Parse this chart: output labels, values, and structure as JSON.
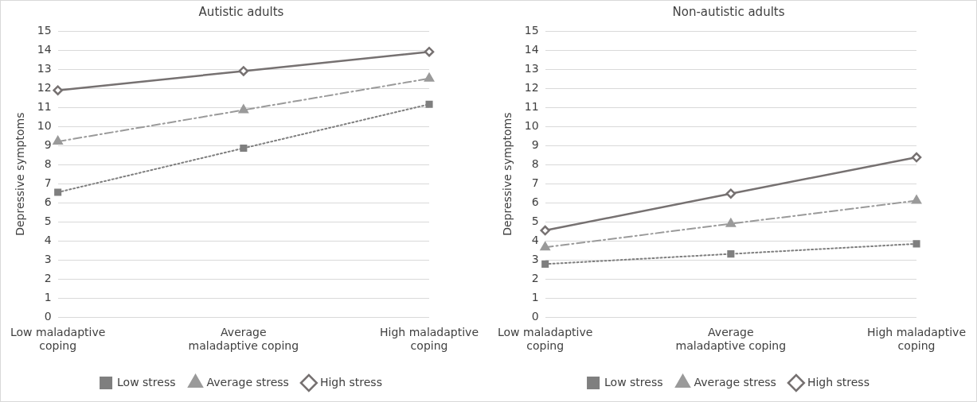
{
  "chart_data": [
    {
      "type": "line",
      "title": "Autistic adults",
      "ylabel": "Depressive symptoms",
      "categories": [
        "Low maladaptive coping",
        "Average maladaptive coping",
        "High maladaptive coping"
      ],
      "series": [
        {
          "name": "Low stress",
          "color": "#7f7f7f",
          "values": [
            6.55,
            8.86,
            11.16
          ],
          "marker": "square",
          "line_style": "dotted"
        },
        {
          "name": "Average stress",
          "color": "#9a9a9a",
          "values": [
            9.21,
            10.86,
            12.51
          ],
          "marker": "triangle",
          "line_style": "dashed"
        },
        {
          "name": "High stress",
          "color": "#767171",
          "values": [
            11.89,
            12.9,
            13.91
          ],
          "marker": "diamond",
          "line_style": "solid"
        }
      ],
      "ylim": [
        0,
        15
      ],
      "yticks": [
        0,
        1,
        2,
        3,
        4,
        5,
        6,
        7,
        8,
        9,
        10,
        11,
        12,
        13,
        14,
        15
      ],
      "grid": "y",
      "legend": "bottom"
    },
    {
      "type": "line",
      "title": "Non-autistic adults",
      "ylabel": "Depressive symptoms",
      "categories": [
        "Low maladaptive coping",
        "Average maladaptive coping",
        "High maladaptive coping"
      ],
      "series": [
        {
          "name": "Low stress",
          "color": "#7f7f7f",
          "values": [
            2.79,
            3.32,
            3.85
          ],
          "marker": "square",
          "line_style": "dotted"
        },
        {
          "name": "Average stress",
          "color": "#9a9a9a",
          "values": [
            3.67,
            4.9,
            6.11
          ],
          "marker": "triangle",
          "line_style": "dashed"
        },
        {
          "name": "High stress",
          "color": "#767171",
          "values": [
            4.55,
            6.48,
            8.38
          ],
          "marker": "diamond",
          "line_style": "solid"
        }
      ],
      "ylim": [
        0,
        15
      ],
      "yticks": [
        0,
        1,
        2,
        3,
        4,
        5,
        6,
        7,
        8,
        9,
        10,
        11,
        12,
        13,
        14,
        15
      ],
      "grid": "y",
      "legend": "bottom"
    }
  ]
}
